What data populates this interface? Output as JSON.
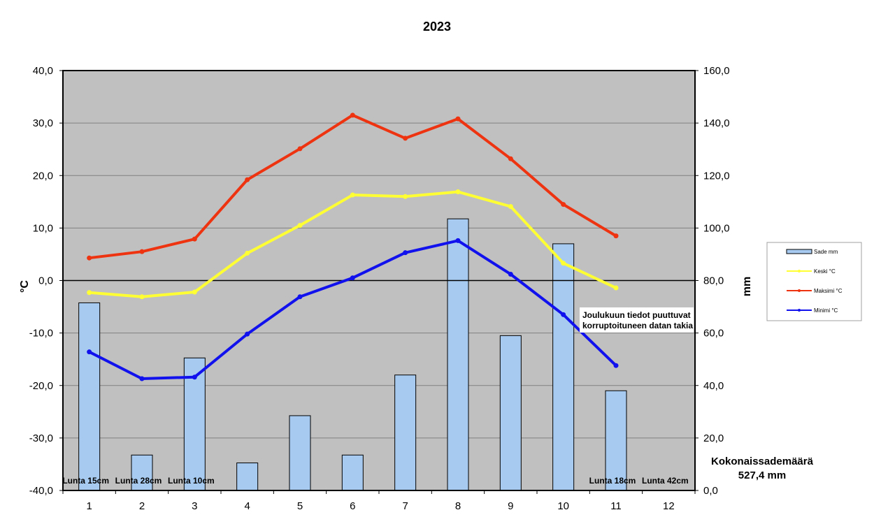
{
  "chart_data": {
    "type": "bar",
    "title": "2023",
    "y_left_label": "°C",
    "y_right_label": "mm",
    "y_left_range": [
      -40,
      40
    ],
    "y_right_range": [
      0,
      160
    ],
    "y_left_ticks": [
      "40,0",
      "30,0",
      "20,0",
      "10,0",
      "0,0",
      "-10,0",
      "-20,0",
      "-30,0",
      "-40,0"
    ],
    "y_right_ticks": [
      "160,0",
      "140,0",
      "120,0",
      "100,0",
      "80,0",
      "60,0",
      "40,0",
      "20,0",
      "0,0"
    ],
    "categories": [
      "1",
      "2",
      "3",
      "4",
      "5",
      "6",
      "7",
      "8",
      "9",
      "10",
      "11",
      "12"
    ],
    "grid": true,
    "legend_position": "right",
    "series": [
      {
        "name": "Sade mm",
        "type": "bar",
        "axis": "right",
        "color": "#a6caf0",
        "values": [
          71.5,
          13.5,
          50.5,
          10.5,
          28.5,
          13.5,
          44,
          103.5,
          59,
          94,
          38,
          null
        ]
      },
      {
        "name": "Keski °C",
        "type": "line",
        "axis": "left",
        "color": "#ffff33",
        "values": [
          -2.3,
          -3.1,
          -2.2,
          5.2,
          10.5,
          16.3,
          16.0,
          16.9,
          14.1,
          3.3,
          -1.4,
          null
        ]
      },
      {
        "name": "Maksimi °C",
        "type": "line",
        "axis": "left",
        "color": "#ee3311",
        "values": [
          4.3,
          5.5,
          7.9,
          19.2,
          25.1,
          31.5,
          27.1,
          30.8,
          23.2,
          14.5,
          8.5,
          null
        ]
      },
      {
        "name": "Minimi °C",
        "type": "line",
        "axis": "left",
        "color": "#1111ee",
        "values": [
          -13.6,
          -18.7,
          -18.4,
          -10.2,
          -3.1,
          0.5,
          5.3,
          7.6,
          1.2,
          -6.5,
          -16.2,
          null
        ]
      }
    ],
    "snow_labels": [
      {
        "month": "1",
        "text": "Lunta 15cm"
      },
      {
        "month": "2",
        "text": "Lunta 28cm"
      },
      {
        "month": "3",
        "text": "Lunta 10cm"
      },
      {
        "month": "11",
        "text": "Lunta 18cm"
      },
      {
        "month": "12",
        "text": "Lunta 42cm"
      }
    ],
    "annotation": [
      "Joulukuun tiedot puuttuvat",
      "korruptoituneen datan takia"
    ],
    "total_label": "Kokonaissademäärä",
    "total_value": "527,4 mm"
  }
}
